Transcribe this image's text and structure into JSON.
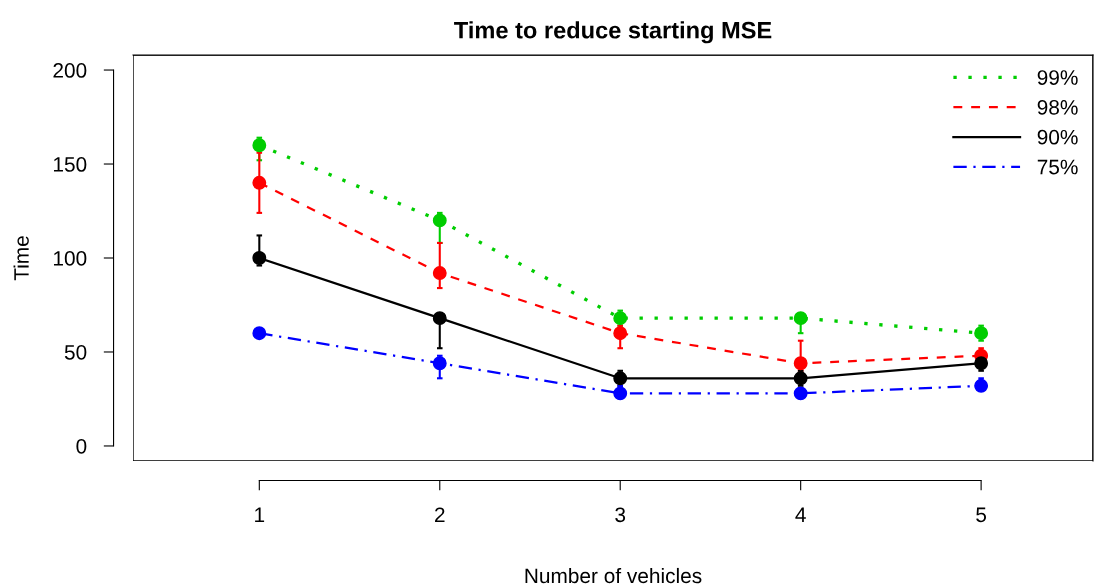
{
  "chart_data": {
    "type": "line",
    "title": "Time to reduce starting MSE",
    "xlabel": "Number of vehicles",
    "ylabel": "Time",
    "x": [
      1,
      2,
      3,
      4,
      5
    ],
    "xlim": [
      0.3,
      5.62
    ],
    "xticks": [
      1,
      2,
      3,
      4,
      5
    ],
    "ylim": [
      -8,
      208
    ],
    "yticks": [
      0,
      50,
      100,
      150,
      200
    ],
    "grid": false,
    "legend": "top right",
    "marker": "circle",
    "series": [
      {
        "name": "99%",
        "color": "#00cd00",
        "line_style": "dotted",
        "values": [
          160,
          120,
          68,
          68,
          60
        ],
        "errors": [
          [
            152,
            164
          ],
          [
            108,
            124
          ],
          [
            64,
            72
          ],
          [
            60,
            68
          ],
          [
            56,
            64
          ]
        ]
      },
      {
        "name": "98%",
        "color": "#ff0000",
        "line_style": "dashed",
        "values": [
          140,
          92,
          60,
          44,
          48
        ],
        "errors": [
          [
            124,
            156
          ],
          [
            84,
            108
          ],
          [
            52,
            64
          ],
          [
            40,
            56
          ],
          [
            48,
            52
          ]
        ]
      },
      {
        "name": "90%",
        "color": "#000000",
        "line_style": "solid",
        "values": [
          100,
          68,
          36,
          36,
          44
        ],
        "errors": [
          [
            96,
            112
          ],
          [
            52,
            68
          ],
          [
            32,
            40
          ],
          [
            32,
            40
          ],
          [
            40,
            48
          ]
        ]
      },
      {
        "name": "75%",
        "color": "#0000ff",
        "line_style": "dashdot",
        "values": [
          60,
          44,
          28,
          28,
          32
        ],
        "errors": [
          null,
          [
            36,
            48
          ],
          [
            26,
            32
          ],
          [
            26,
            30
          ],
          [
            32,
            36
          ]
        ]
      }
    ]
  }
}
